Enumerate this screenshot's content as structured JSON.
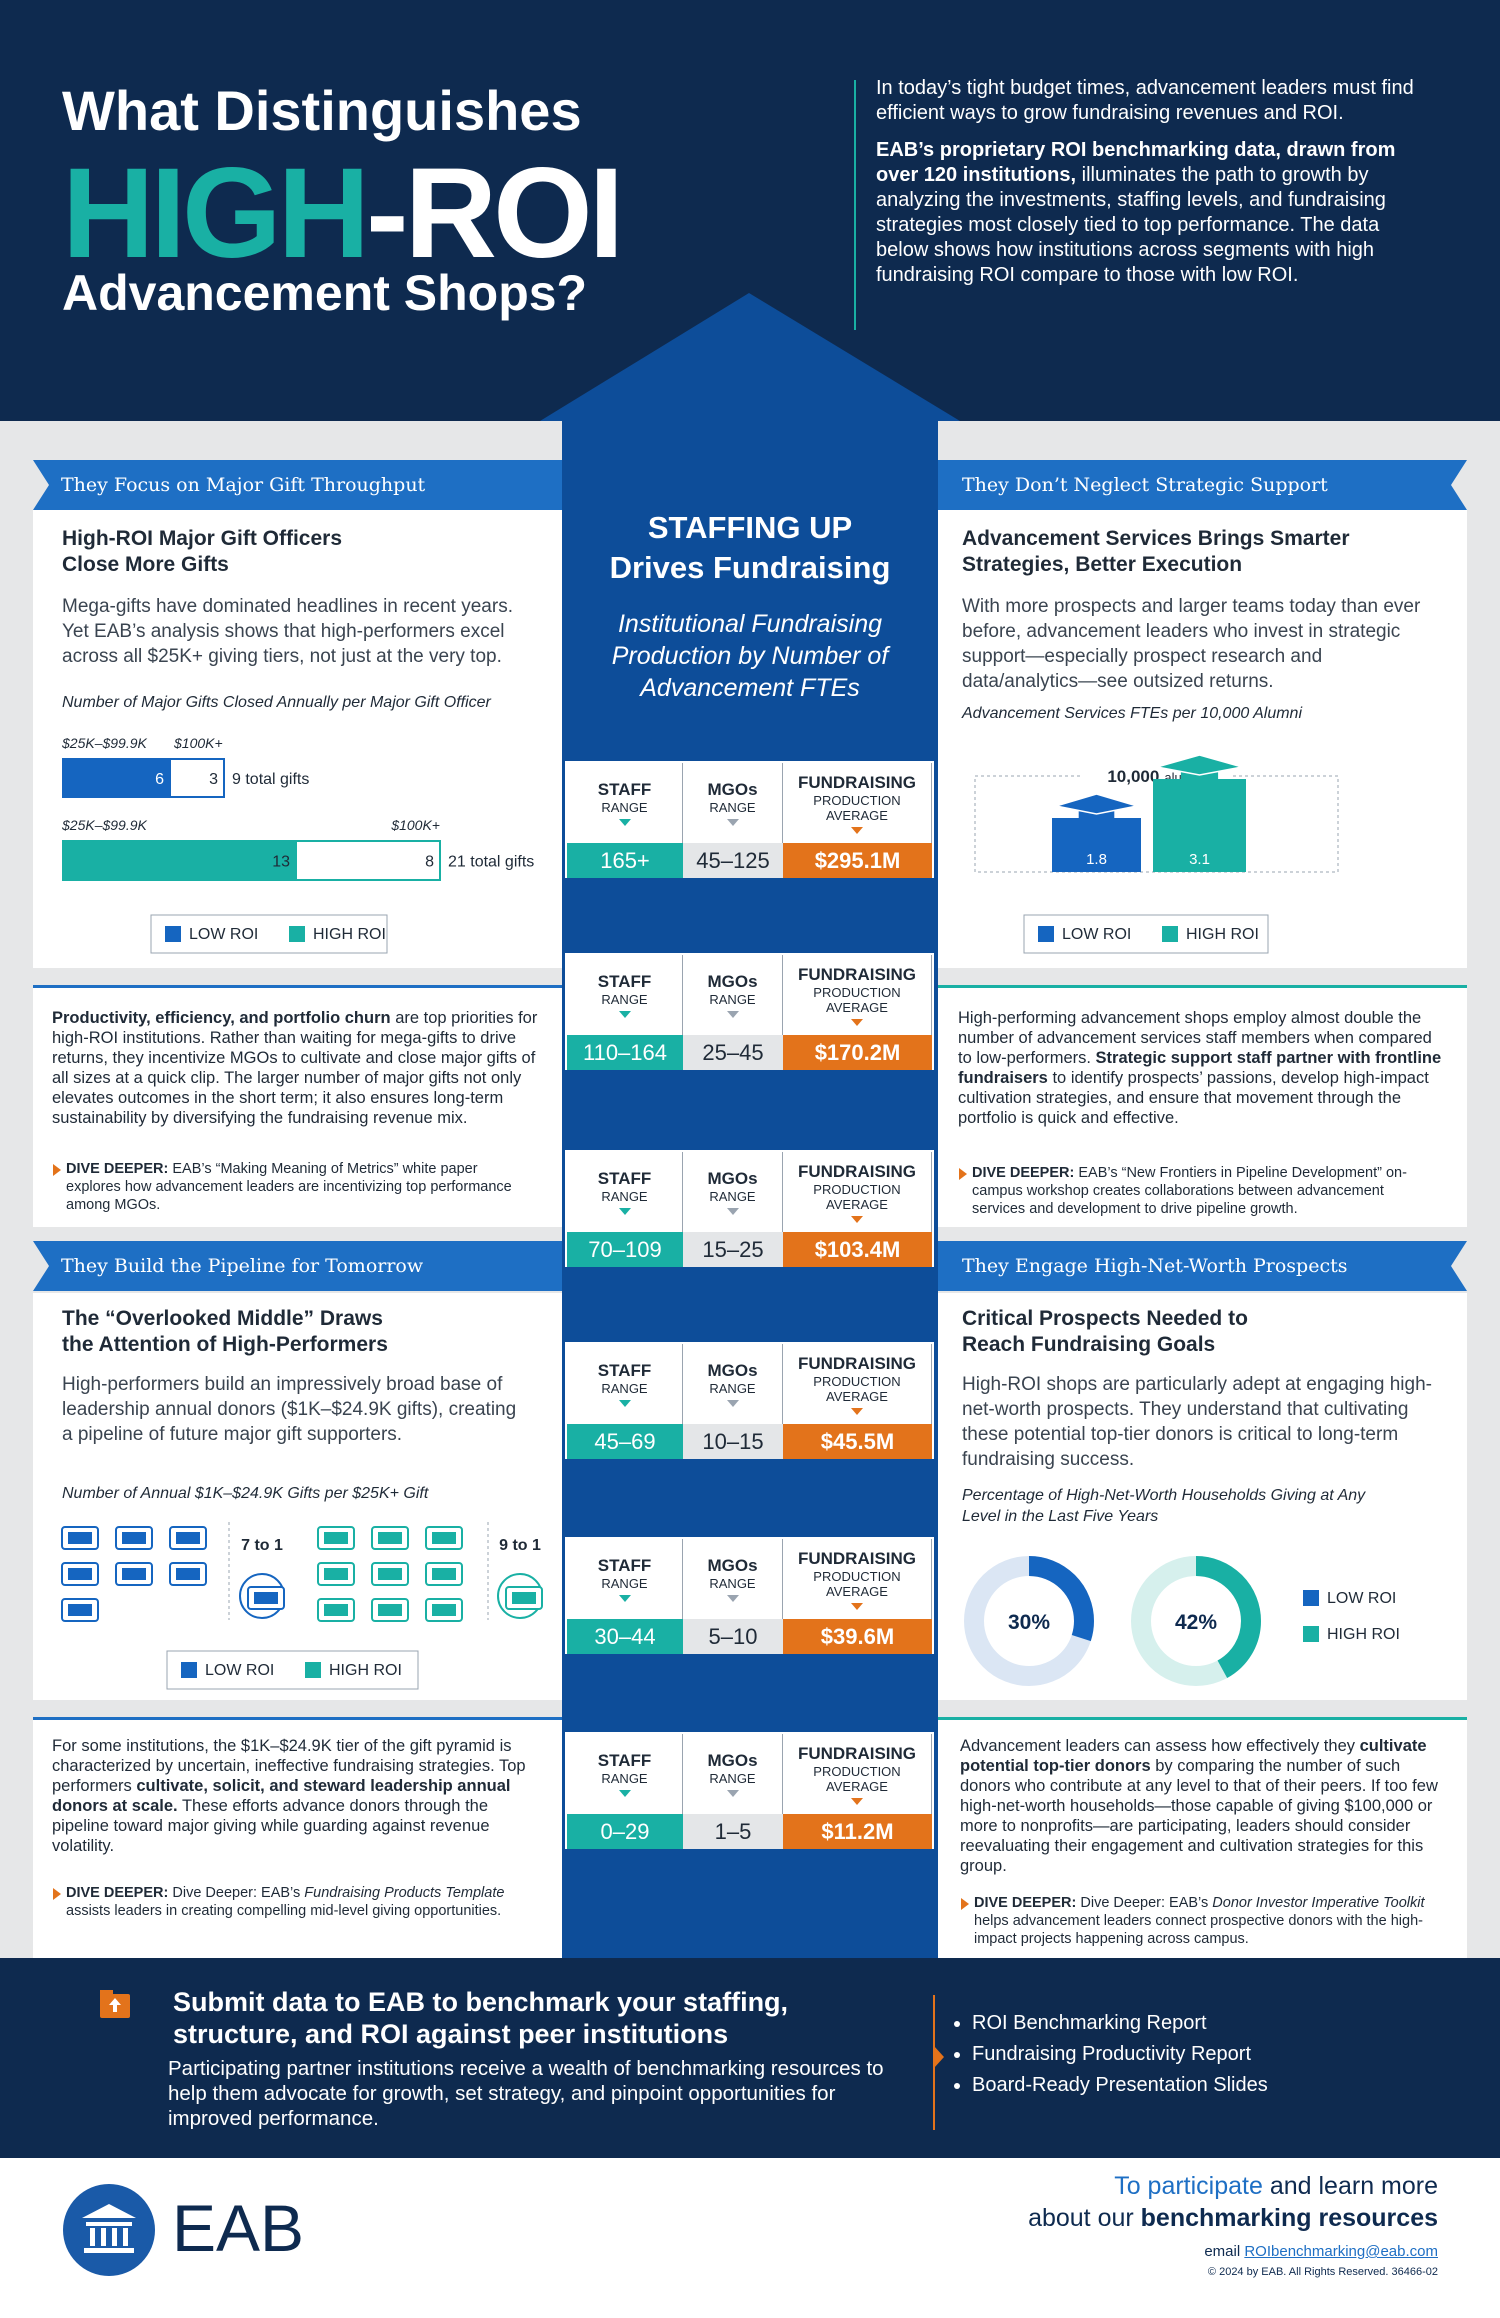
{
  "header": {
    "title_1": "What Distinguishes",
    "title_accent": "HIGH",
    "title_rest": "-ROI",
    "title_3": "Advancement Shops?",
    "intro_1": "In today’s tight budget times, advancement leaders must find efficient ways to grow fundraising revenues and ROI.",
    "intro_bold": "EAB’s proprietary ROI benchmarking data, drawn from over 120 institutions,",
    "intro_2": "illuminates the path to growth by analyzing the investments, staffing levels, and fundraising strategies most closely tied to top performance. The data below shows how institutions across segments with high fundraising ROI compare to those with low ROI."
  },
  "colors": {
    "low": "#1565c0",
    "high": "#19b0a4",
    "orange": "#e3731b",
    "navy": "#0e2a4f",
    "column": "#0d4d99"
  },
  "legend": {
    "low": "LOW ROI",
    "high": "HIGH ROI"
  },
  "center": {
    "heading_1": "STAFFING UP",
    "heading_2": "Drives Fundraising",
    "subtitle": "Institutional Fundraising Production by Number of Advancement FTEs",
    "labels": {
      "staff": "STAFF",
      "mgos": "MGOs",
      "range": "RANGE",
      "fundraising": "FUNDRAISING",
      "production": "PRODUCTION",
      "average": "AVERAGE"
    },
    "tiers": [
      {
        "staff": "165+",
        "mgos": "45–125",
        "production": "$295.1M"
      },
      {
        "staff": "110–164",
        "mgos": "25–45",
        "production": "$170.2M"
      },
      {
        "staff": "70–109",
        "mgos": "15–25",
        "production": "$103.4M"
      },
      {
        "staff": "45–69",
        "mgos": "10–15",
        "production": "$45.5M"
      },
      {
        "staff": "30–44",
        "mgos": "5–10",
        "production": "$39.6M"
      },
      {
        "staff": "0–29",
        "mgos": "1–5",
        "production": "$11.2M"
      }
    ]
  },
  "major_gifts": {
    "banner": "They Focus on Major Gift Throughput",
    "heading": "High-ROI Major Gift Officers Close More Gifts",
    "body": "Mega-gifts have dominated headlines in recent years. Yet EAB’s analysis shows that high-performers excel across all $25K+ giving tiers, not just at the very top.",
    "caption": "Number of Major Gifts Closed Annually per Major Gift Officer",
    "tier_labels": [
      "$25K–$99.9K",
      "$100K+"
    ],
    "low": {
      "values": [
        6,
        3
      ],
      "total": "9 total gifts"
    },
    "high": {
      "values": [
        13,
        8
      ],
      "total": "21 total gifts"
    },
    "text_bold": "Productivity, efficiency, and portfolio churn",
    "text_2": "are top priorities for high-ROI institutions. Rather than waiting for mega-gifts to drive returns, they incentivize MGOs to cultivate and close major gifts of all sizes at a quick clip. The larger number of major gifts not only elevates outcomes in the short term; it also ensures long-term sustainability by diversifying the fundraising revenue mix.",
    "dive_label": "DIVE DEEPER:",
    "dive_text": "EAB’s “Making Meaning of Metrics” white paper explores how advancement leaders are incentivizing top performance among MGOs."
  },
  "support": {
    "banner": "They Don’t Neglect Strategic Support",
    "heading": "Advancement Services Brings Smarter Strategies, Better Execution",
    "body": "With more prospects and larger teams today than ever before, advancement leaders who invest in strategic support—especially prospect research and data/analytics—see outsized returns.",
    "caption": "Advancement Services FTEs per 10,000 Alumni",
    "alumni_number": "10,000",
    "alumni_word": "alumni",
    "values": [
      1.8,
      3.1
    ],
    "text_1": "High-performing advancement shops employ almost double the number of advancement services staff members when compared to low-performers.",
    "text_bold": "Strategic support staff partner with frontline fundraisers",
    "text_2": "to identify prospects’ passions, develop high-impact cultivation strategies, and ensure that movement through the portfolio is quick and effective.",
    "dive_label": "DIVE DEEPER:",
    "dive_text": "EAB’s “New Frontiers in Pipeline Development” on-campus workshop creates collaborations between advancement services and development to drive pipeline growth."
  },
  "pipeline": {
    "banner": "They Build the Pipeline for Tomorrow",
    "heading": "The “Overlooked Middle” Draws the Attention of High-Performers",
    "body": "High-performers build an impressively broad base of leadership annual donors ($1K–$24.9K gifts), creating a pipeline of future major gift supporters.",
    "caption": "Number of Annual $1K–$24.9K Gifts per $25K+ Gift",
    "low": {
      "value": 7,
      "label": "7 to 1"
    },
    "high": {
      "value": 9,
      "label": "9 to 1"
    },
    "text_1": "For some institutions, the $1K–$24.9K tier of the gift pyramid is characterized by uncertain, ineffective fundraising strategies. Top performers",
    "text_bold": "cultivate, solicit, and steward leadership annual donors at scale.",
    "text_2": "These efforts advance donors through the pipeline toward major giving while guarding against revenue volatility.",
    "dive_label": "DIVE DEEPER:",
    "dive_text": "Dive Deeper: EAB’s",
    "dive_italic": "Fundraising Products Template",
    "dive_rest": "assists leaders in creating compelling mid-level giving opportunities."
  },
  "prospects": {
    "banner": "They Engage High-Net-Worth Prospects",
    "heading": "Critical Prospects Needed to Reach Fundraising Goals",
    "body": "High-ROI shops are particularly adept at engaging high-net-worth prospects. They understand that cultivating these potential top-tier donors is critical to long-term fundraising success.",
    "caption": "Percentage of High-Net-Worth Households Giving at Any Level in the Last Five Years",
    "values": [
      30,
      42
    ],
    "value_labels": [
      "30%",
      "42%"
    ],
    "text_1": "Advancement leaders can assess how effectively they",
    "text_bold": "cultivate potential top-tier donors",
    "text_2": "by comparing the number of such donors who contribute at any level to that of their peers. If too few high-net-worth households—those capable of giving $100,000 or more to nonprofits—are participating, leaders should consider reevaluating their engagement and cultivation strategies for this group.",
    "dive_label": "DIVE DEEPER:",
    "dive_text": "Dive Deeper: EAB’s",
    "dive_italic": "Donor Investor Imperative Toolkit",
    "dive_rest": "helps advancement leaders connect prospective donors with the high-impact projects happening across campus."
  },
  "cta": {
    "heading": "Submit data to EAB to benchmark your staffing, structure, and ROI against peer institutions",
    "body": "Participating partner institutions receive a wealth of benchmarking resources to help them advocate for growth, set strategy, and pinpoint opportunities for improved performance.",
    "bullets": [
      "ROI Benchmarking Report",
      "Fundraising Productivity Report",
      "Board-Ready Presentation Slides"
    ]
  },
  "footer": {
    "logo": "EAB",
    "line_1_accent": "To participate",
    "line_1_rest": "and learn more",
    "line_2_start": "about our",
    "line_2_bold": "benchmarking resources",
    "email_label": "email",
    "email": "ROIbenchmarking@eab.com",
    "copyright": "© 2024 by EAB. All Rights Reserved. 36466-02"
  }
}
